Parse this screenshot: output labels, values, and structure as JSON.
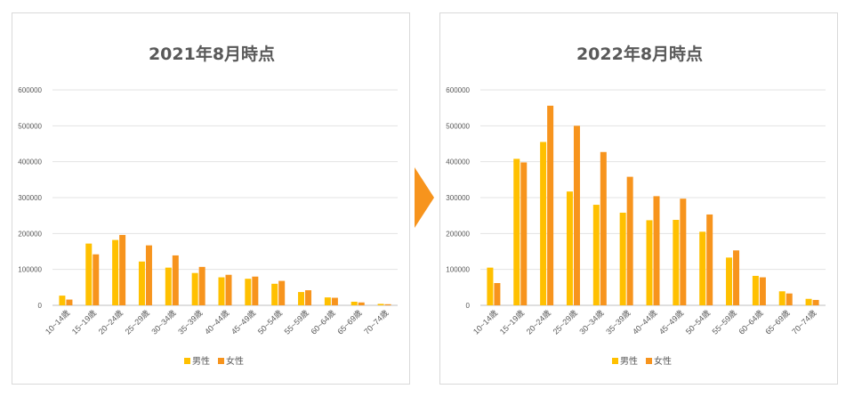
{
  "chart_data": [
    {
      "type": "bar",
      "title": "2021年8月時点",
      "categories": [
        "10~14歳",
        "15~19歳",
        "20~24歳",
        "25~29歳",
        "30~34歳",
        "35~39歳",
        "40~44歳",
        "45~49歳",
        "50~54歳",
        "55~59歳",
        "60~64歳",
        "65~69歳",
        "70~74歳"
      ],
      "series": [
        {
          "name": "男性",
          "color": "#ffc000",
          "values": [
            27000,
            172000,
            182000,
            122000,
            105000,
            90000,
            78000,
            74000,
            60000,
            37000,
            22000,
            10000,
            4000
          ]
        },
        {
          "name": "女性",
          "color": "#f7941d",
          "values": [
            16000,
            142000,
            196000,
            167000,
            139000,
            107000,
            85000,
            80000,
            68000,
            42000,
            21000,
            8000,
            3000
          ]
        }
      ],
      "ylim": [
        0,
        600000
      ],
      "yticks": [
        "0",
        "100000",
        "200000",
        "300000",
        "400000",
        "500000",
        "600000"
      ],
      "grid": true,
      "legend": "bottom"
    },
    {
      "type": "bar",
      "title": "2022年8月時点",
      "categories": [
        "10~14歳",
        "15~19歳",
        "20~24歳",
        "25~29歳",
        "30~34歳",
        "35~39歳",
        "40~44歳",
        "45~49歳",
        "50~54歳",
        "55~59歳",
        "60~64歳",
        "65~69歳",
        "70~74歳"
      ],
      "series": [
        {
          "name": "男性",
          "color": "#ffc000",
          "values": [
            105000,
            408000,
            455000,
            317000,
            280000,
            258000,
            237000,
            238000,
            205000,
            133000,
            82000,
            39000,
            18000
          ]
        },
        {
          "name": "女性",
          "color": "#f7941d",
          "values": [
            62000,
            398000,
            556000,
            500000,
            427000,
            358000,
            304000,
            297000,
            253000,
            153000,
            78000,
            33000,
            15000
          ]
        }
      ],
      "ylim": [
        0,
        600000
      ],
      "yticks": [
        "0",
        "100000",
        "200000",
        "300000",
        "400000",
        "500000",
        "600000"
      ],
      "grid": true,
      "legend": "bottom"
    }
  ],
  "arrow_color": "#f7941d"
}
